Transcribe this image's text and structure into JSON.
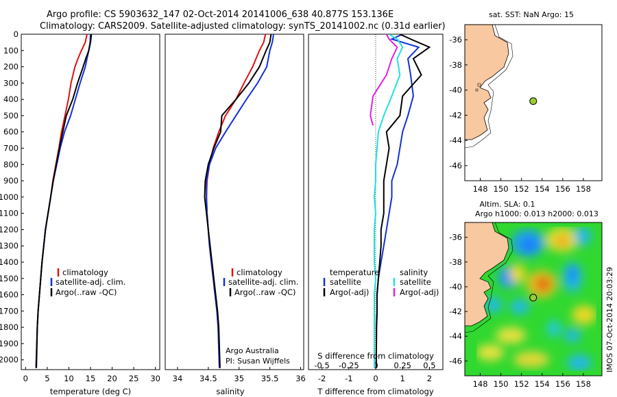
{
  "title_line1": "Argo profile: CS 5903632_147 02-Oct-2014 20141006_638 40.877S 153.136E",
  "title_line2": "Climatology: CARS2009. Satellite-adjusted climatology: synTS_20141002.nc (0.31d earlier)",
  "side_label": "IMOS 07-Oct-2014 20:03:29",
  "colors": {
    "climatology": "#e01010",
    "satellite": "#1030d8",
    "argo": "#000000",
    "cyan": "#20e0e0",
    "magenta": "#e020e0",
    "float": "#9acd32",
    "land": "#f8c8a0"
  },
  "chart_data": [
    {
      "type": "line",
      "id": "temperature",
      "xlabel": "temperature (deg C)",
      "ylabel": "",
      "xlim": [
        -1,
        31
      ],
      "ylim": [
        2060,
        0
      ],
      "xticks": [
        "0",
        "5",
        "10",
        "15",
        "20",
        "25",
        "30"
      ],
      "yticks": [
        "0",
        "100",
        "200",
        "300",
        "400",
        "500",
        "600",
        "700",
        "800",
        "900",
        "1000",
        "1100",
        "1200",
        "1300",
        "1400",
        "1500",
        "1600",
        "1700",
        "1800",
        "1900",
        "2000"
      ],
      "legend": [
        "climatology",
        "satellite-adj. clim.",
        "Argo(..raw -QC)"
      ],
      "series": [
        {
          "name": "climatology",
          "color": "#e01010",
          "x": [
            14.2,
            13.8,
            12.9,
            12.1,
            11.4,
            10.5,
            9.9,
            9.1,
            8.3,
            7.7,
            7.0,
            6.3,
            5.8,
            5.2,
            4.6,
            4.2,
            3.8,
            3.5,
            3.2,
            2.9,
            2.7,
            2.4
          ],
          "y": [
            0,
            50,
            100,
            150,
            200,
            300,
            400,
            500,
            600,
            700,
            800,
            900,
            1000,
            1100,
            1200,
            1300,
            1400,
            1500,
            1600,
            1700,
            1800,
            2050
          ]
        },
        {
          "name": "satellite-adj. clim.",
          "color": "#1030d8",
          "x": [
            15.0,
            14.9,
            14.6,
            14.2,
            13.8,
            12.6,
            11.5,
            10.4,
            9.0,
            8.0,
            7.2,
            6.4,
            5.8,
            5.2,
            4.6,
            4.2,
            3.8,
            3.5,
            3.2,
            2.9,
            2.7,
            2.4
          ],
          "y": [
            0,
            50,
            100,
            150,
            200,
            300,
            400,
            500,
            600,
            700,
            800,
            900,
            1000,
            1100,
            1200,
            1300,
            1400,
            1500,
            1600,
            1700,
            1800,
            2050
          ]
        },
        {
          "name": "Argo(..raw -QC)",
          "color": "#000000",
          "x": [
            15.2,
            15.0,
            14.6,
            13.9,
            13.3,
            12.0,
            10.9,
            9.4,
            8.6,
            7.8,
            7.1,
            6.4,
            5.8,
            5.2,
            4.6,
            4.2,
            3.8,
            3.5,
            3.2,
            2.9,
            2.7,
            2.5
          ],
          "y": [
            0,
            50,
            100,
            150,
            200,
            300,
            400,
            500,
            600,
            700,
            800,
            900,
            1000,
            1100,
            1200,
            1300,
            1400,
            1500,
            1600,
            1700,
            1800,
            2050
          ]
        }
      ]
    },
    {
      "type": "line",
      "id": "salinity",
      "xlabel": "salinity",
      "ylabel": "",
      "xlim": [
        33.8,
        36.05
      ],
      "ylim": [
        2060,
        0
      ],
      "xticks": [
        "34",
        "34.5",
        "35",
        "35.5",
        "36"
      ],
      "legend": [
        "climatology",
        "satellite-adj. clim.",
        "Argo(..raw -QC)"
      ],
      "notes": [
        "Argo Australia",
        "PI: Susan Wijffels"
      ],
      "series": [
        {
          "name": "climatology",
          "color": "#e01010",
          "x": [
            35.43,
            35.4,
            35.33,
            35.22,
            35.08,
            34.95,
            34.78,
            34.67,
            34.58,
            34.52,
            34.48,
            34.47,
            34.48,
            34.5,
            34.52,
            34.55,
            34.58,
            34.61,
            34.64,
            34.66,
            34.68
          ],
          "y": [
            0,
            50,
            100,
            200,
            300,
            400,
            500,
            600,
            700,
            800,
            900,
            1000,
            1100,
            1200,
            1300,
            1400,
            1500,
            1600,
            1700,
            1800,
            2050
          ]
        },
        {
          "name": "satellite-adj. clim.",
          "color": "#1030d8",
          "x": [
            35.56,
            35.54,
            35.5,
            35.45,
            35.3,
            35.12,
            34.95,
            34.78,
            34.62,
            34.52,
            34.47,
            34.47,
            34.48,
            34.5,
            34.52,
            34.55,
            34.58,
            34.61,
            34.64,
            34.66,
            34.68
          ],
          "y": [
            0,
            50,
            100,
            200,
            300,
            400,
            500,
            600,
            700,
            800,
            900,
            1000,
            1100,
            1200,
            1300,
            1400,
            1500,
            1600,
            1700,
            1800,
            2050
          ]
        },
        {
          "name": "Argo(..raw -QC)",
          "color": "#000000",
          "x": [
            35.52,
            35.5,
            35.44,
            35.33,
            35.16,
            34.95,
            34.72,
            34.7,
            34.59,
            34.5,
            34.45,
            34.44,
            34.47,
            34.5,
            34.53,
            34.56,
            34.59,
            34.62,
            34.65,
            34.67,
            34.69
          ],
          "y": [
            0,
            50,
            100,
            200,
            300,
            400,
            500,
            600,
            700,
            800,
            900,
            1000,
            1100,
            1200,
            1300,
            1400,
            1500,
            1600,
            1700,
            1800,
            2050
          ]
        }
      ]
    },
    {
      "type": "line",
      "id": "difference",
      "xlabel": "T difference from climatology",
      "xlabel2": "S difference from climatology",
      "xlim": [
        -2.5,
        2.5
      ],
      "ylim": [
        2060,
        0
      ],
      "xticks": [
        "-2",
        "-1",
        "0",
        "1",
        "2"
      ],
      "xticks_s": [
        "-0.5",
        "-0.25",
        "0",
        "0.25",
        "0.5"
      ],
      "legend_titles": [
        "temperature",
        "salinity"
      ],
      "legend": [
        "satellite",
        "Argo(-adj)",
        "satellite",
        "Argo(-adj)"
      ],
      "series": [
        {
          "name": "temperature satellite",
          "color": "#1030d8",
          "x": [
            1.0,
            0.6,
            1.6,
            1.2,
            1.3,
            1.4,
            1.2,
            1.0,
            0.9,
            0.8,
            0.6,
            0.6,
            0.5,
            0.4,
            0.3,
            0.2,
            0.1,
            0.05,
            0.05,
            0.03,
            0.02
          ],
          "y": [
            0,
            30,
            80,
            150,
            250,
            380,
            500,
            600,
            700,
            800,
            900,
            1000,
            1100,
            1200,
            1300,
            1400,
            1500,
            1600,
            1700,
            1800,
            2050
          ]
        },
        {
          "name": "temperature Argo(-adj)",
          "color": "#000000",
          "x": [
            0.9,
            1.3,
            2.0,
            1.4,
            1.7,
            1.0,
            0.9,
            0.4,
            0.5,
            0.4,
            0.3,
            0.3,
            0.3,
            0.2,
            0.2,
            0.15,
            0.1,
            0.05,
            0.05,
            0.03,
            0.02
          ],
          "y": [
            0,
            30,
            80,
            150,
            250,
            380,
            500,
            600,
            700,
            800,
            900,
            1000,
            1100,
            1200,
            1300,
            1400,
            1500,
            1600,
            1700,
            1800,
            2050
          ]
        },
        {
          "name": "salinity satellite",
          "color": "#20e0e0",
          "x": [
            0.5,
            0.8,
            1.0,
            0.8,
            0.9,
            0.6,
            0.3,
            0.1,
            0.05,
            0.0,
            0.0,
            -0.05,
            0.0,
            -0.05,
            -0.05,
            -0.05,
            0.0,
            -0.05,
            -0.05,
            -0.05,
            -0.05
          ],
          "y": [
            0,
            30,
            80,
            150,
            250,
            380,
            500,
            600,
            700,
            800,
            900,
            1000,
            1100,
            1200,
            1300,
            1400,
            1500,
            1600,
            1700,
            1800,
            2050
          ]
        },
        {
          "name": "salinity Argo(-adj)",
          "color": "#e020e0",
          "x": [
            0.4,
            0.5,
            0.8,
            0.6,
            0.4,
            -0.1,
            -0.2,
            -0.1
          ],
          "y": [
            0,
            30,
            80,
            150,
            250,
            380,
            500,
            560
          ]
        }
      ]
    },
    {
      "type": "scatter",
      "id": "map-sst",
      "title": "sat. SST: NaN Argo: 15",
      "xticks": [
        "148",
        "150",
        "152",
        "154",
        "156",
        "158"
      ],
      "yticks": [
        "-36",
        "-38",
        "-40",
        "-42",
        "-44",
        "-46"
      ],
      "xlim": [
        146.5,
        159.8
      ],
      "ylim": [
        -47.2,
        -34.8
      ],
      "points": [
        {
          "x": 153.136,
          "y": -40.877
        }
      ]
    },
    {
      "type": "heatmap",
      "id": "map-sla",
      "title": "Altim. SLA: 0.1",
      "subtitle": "Argo h1000: 0.013 h2000: 0.013",
      "xticks": [
        "148",
        "150",
        "152",
        "154",
        "156",
        "158"
      ],
      "yticks": [
        "-36",
        "-38",
        "-40",
        "-42",
        "-44",
        "-46"
      ],
      "xlim": [
        146.5,
        159.8
      ],
      "ylim": [
        -47.2,
        -34.8
      ],
      "points": [
        {
          "x": 153.136,
          "y": -40.877
        }
      ]
    }
  ]
}
